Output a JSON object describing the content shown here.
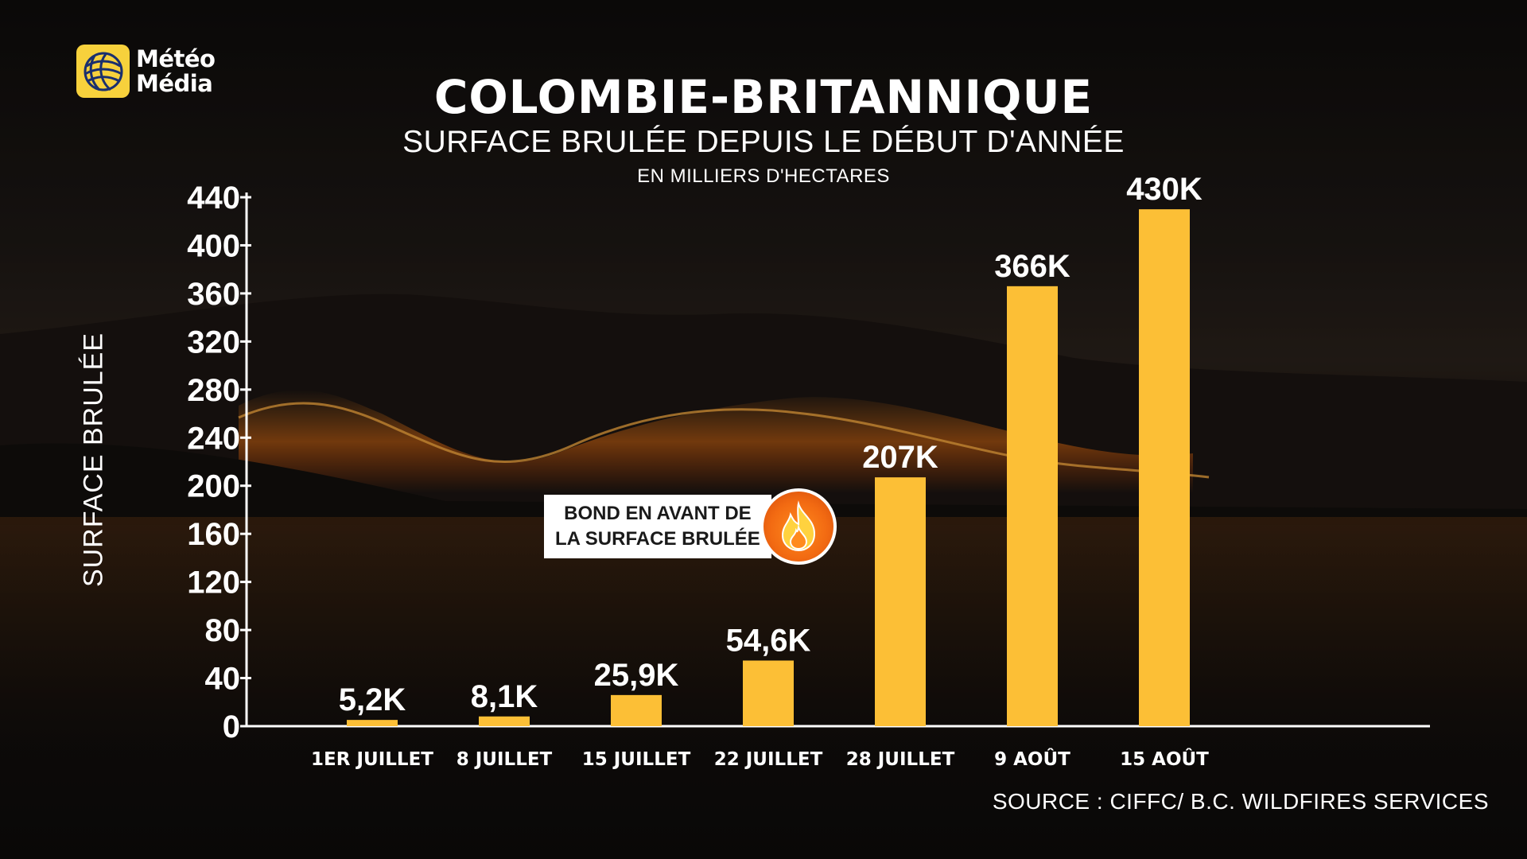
{
  "brand": {
    "line1": "Météo",
    "line2": "Média",
    "logo_icon": "globe-icon",
    "logo_color": "#f7d13c"
  },
  "header": {
    "title": "COLOMBIE-BRITANNIQUE",
    "subtitle": "SURFACE BRULÉE DEPUIS LE DÉBUT D'ANNÉE",
    "unit_note": "EN MILLIERS D'HECTARES"
  },
  "callout": {
    "line1": "BOND EN AVANT DE",
    "line2": "LA SURFACE BRULÉE",
    "icon": "fire-icon",
    "icon_color": "#f26a12"
  },
  "source": "SOURCE : CIFFC/ B.C. WILDFIRES SERVICES",
  "chart_data": {
    "type": "bar",
    "title": "COLOMBIE-BRITANNIQUE",
    "subtitle": "SURFACE BRULÉE DEPUIS LE DÉBUT D'ANNÉE",
    "ylabel": "SURFACE BRULÉE",
    "xlabel": "",
    "categories": [
      "1ER JUILLET",
      "8 JUILLET",
      "15 JUILLET",
      "22 JUILLET",
      "28 JUILLET",
      "9 AOÛT",
      "15 AOÛT"
    ],
    "values": [
      5.2,
      8.1,
      25.9,
      54.6,
      207,
      366,
      430
    ],
    "data_labels": [
      "5,2K",
      "8,1K",
      "25,9K",
      "54,6K",
      "207K",
      "366K",
      "430K"
    ],
    "ylim": [
      0,
      440
    ],
    "yticks": [
      0,
      40,
      80,
      120,
      160,
      200,
      240,
      280,
      320,
      360,
      400,
      440
    ],
    "grid": false,
    "legend": "none",
    "bar_color": "#fcbf36",
    "axis_color": "#ffffff"
  }
}
